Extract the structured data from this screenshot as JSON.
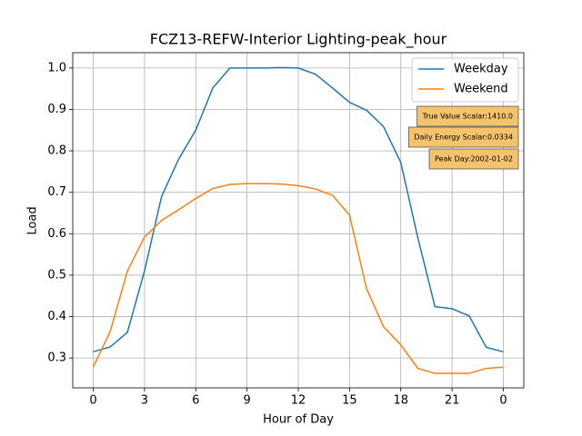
{
  "chart_data": {
    "type": "line",
    "title": "FCZ13-REFW-Interior Lighting-peak_hour",
    "x_label": "Hour of Day",
    "y_label": "Load",
    "x": [
      0,
      1,
      2,
      3,
      4,
      5,
      6,
      7,
      8,
      9,
      10,
      11,
      12,
      13,
      14,
      15,
      16,
      17,
      18,
      19,
      20,
      21,
      22,
      23,
      24
    ],
    "series": [
      {
        "name": "Weekday",
        "color": "#1f77b4",
        "values": [
          0.315,
          0.327,
          0.362,
          0.51,
          0.69,
          0.78,
          0.85,
          0.952,
          1.0,
          1.0,
          1.0,
          1.001,
          1.0,
          0.985,
          0.952,
          0.917,
          0.898,
          0.858,
          0.772,
          0.59,
          0.424,
          0.419,
          0.402,
          0.326,
          0.315
        ]
      },
      {
        "name": "Weekend",
        "color": "#ff7f0e",
        "values": [
          0.278,
          0.365,
          0.51,
          0.592,
          0.632,
          0.658,
          0.685,
          0.709,
          0.719,
          0.721,
          0.721,
          0.72,
          0.716,
          0.708,
          0.693,
          0.645,
          0.467,
          0.375,
          0.332,
          0.275,
          0.263,
          0.263,
          0.263,
          0.275,
          0.278
        ]
      }
    ],
    "xlim": [
      -1.2,
      25.2
    ],
    "ylim": [
      0.228,
      1.037
    ],
    "xticks": [
      0,
      3,
      6,
      9,
      12,
      15,
      18,
      21,
      {
        "value": 24,
        "label": "0"
      }
    ],
    "yticks": [
      {
        "value": 0.3,
        "label": "0.3"
      },
      {
        "value": 0.4,
        "label": "0.4"
      },
      {
        "value": 0.5,
        "label": "0.5"
      },
      {
        "value": 0.6,
        "label": "0.6"
      },
      {
        "value": 0.7,
        "label": "0.7"
      },
      {
        "value": 0.8,
        "label": "0.8"
      },
      {
        "value": 0.9,
        "label": "0.9"
      },
      {
        "value": 1.0,
        "label": "1.0"
      }
    ],
    "grid": true,
    "legend_position": "upper right",
    "annotations": [
      "True Value Scalar:1410.0",
      "Daily Energy Scalar:0.0334",
      "Peak Day:2002-01-02"
    ],
    "annotation_color": "#f5c36b"
  }
}
